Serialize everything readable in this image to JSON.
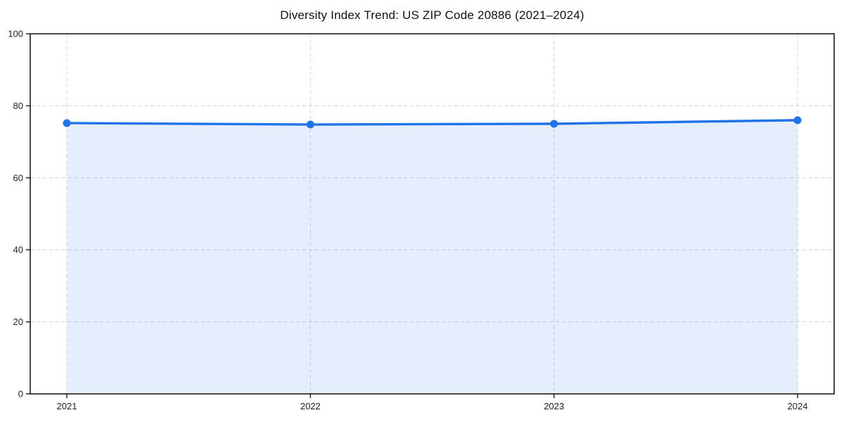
{
  "chart_data": {
    "type": "line",
    "title": "Diversity Index Trend: US ZIP Code 20886 (2021–2024)",
    "categories": [
      "2021",
      "2022",
      "2023",
      "2024"
    ],
    "series": [
      {
        "name": "Diversity Index",
        "values": [
          75.2,
          74.8,
          75.0,
          76.0
        ]
      }
    ],
    "xlabel": "",
    "ylabel": "",
    "ylim": [
      0,
      100
    ],
    "yticks": [
      0,
      20,
      40,
      60,
      80,
      100
    ],
    "grid": true,
    "grid_style": "dashed",
    "legend_position": "none",
    "marker": "circle",
    "area_fill": true,
    "colors": {
      "line": "#2272e8",
      "marker": "#2272e8",
      "area": "#2272e8",
      "area_opacity": 0.12,
      "grid": "#d4d4d4",
      "spine": "#1a1a1a",
      "title": "#111111",
      "tick_label": "#222222",
      "background": "#ffffff"
    }
  }
}
